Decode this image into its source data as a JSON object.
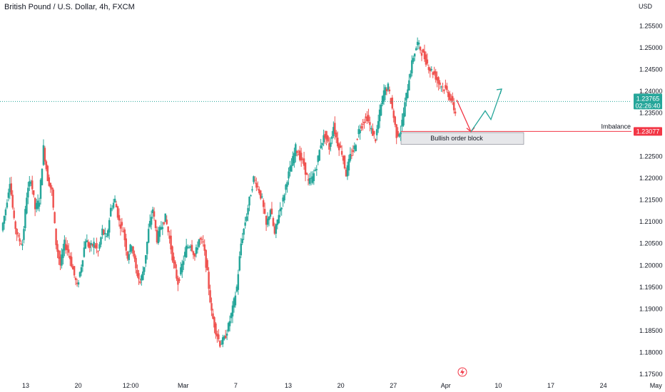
{
  "chart_data": {
    "type": "candlestick",
    "title": "British Pound / U.S. Dollar, 4h, FXCM",
    "currency_label": "USD",
    "y_ticks": [
      "1.25500",
      "1.25000",
      "1.24500",
      "1.24000",
      "1.23500",
      "1.22500",
      "1.22000",
      "1.21500",
      "1.21000",
      "1.20500",
      "1.20000",
      "1.19500",
      "1.19000",
      "1.18500",
      "1.18000",
      "1.17500"
    ],
    "x_ticks": [
      "13",
      "20",
      "12:00",
      "Mar",
      "7",
      "13",
      "20",
      "27",
      "Apr",
      "10",
      "17",
      "24",
      "May"
    ],
    "ylim": [
      1.1745,
      1.2585
    ],
    "price_tag": {
      "value": "1.23765",
      "countdown": "02:26:40",
      "color": "#26a69a"
    },
    "imbalance": {
      "label": "Imbalance",
      "value": "1.23077",
      "color": "#f23645"
    },
    "order_block": {
      "label": "Bullish order block",
      "top": 1.2305,
      "bottom": 1.2278
    },
    "colors": {
      "up": "#26a69a",
      "down": "#ef5350",
      "arrow_down": "#f23645",
      "arrow_up": "#26a69a"
    },
    "path_points": [
      1.208,
      1.213,
      1.2195,
      1.21,
      1.206,
      1.205,
      1.216,
      1.22,
      1.213,
      1.215,
      1.227,
      1.22,
      1.217,
      1.205,
      1.2,
      1.205,
      1.203,
      1.199,
      1.195,
      1.2,
      1.206,
      1.204,
      1.205,
      1.203,
      1.208,
      1.206,
      1.213,
      1.215,
      1.21,
      1.208,
      1.202,
      1.205,
      1.199,
      1.196,
      1.2,
      1.208,
      1.213,
      1.206,
      1.209,
      1.211,
      1.206,
      1.2,
      1.196,
      1.2,
      1.204,
      1.205,
      1.202,
      1.206,
      1.205,
      1.198,
      1.189,
      1.185,
      1.182,
      1.183,
      1.186,
      1.19,
      1.195,
      1.205,
      1.21,
      1.215,
      1.22,
      1.218,
      1.215,
      1.209,
      1.213,
      1.207,
      1.212,
      1.215,
      1.22,
      1.223,
      1.227,
      1.225,
      1.223,
      1.219,
      1.22,
      1.223,
      1.228,
      1.23,
      1.227,
      1.232,
      1.228,
      1.226,
      1.221,
      1.225,
      1.227,
      1.231,
      1.233,
      1.234,
      1.231,
      1.229,
      1.235,
      1.24,
      1.241,
      1.236,
      1.23,
      1.231,
      1.237,
      1.243,
      1.248,
      1.251,
      1.249,
      1.247,
      1.245,
      1.244,
      1.242,
      1.241,
      1.24,
      1.238,
      1.235
    ],
    "projection": {
      "red": [
        [
          1.238,
          1.2307
        ]
      ],
      "green": [
        1.2355,
        1.2335,
        1.2365
      ]
    }
  }
}
